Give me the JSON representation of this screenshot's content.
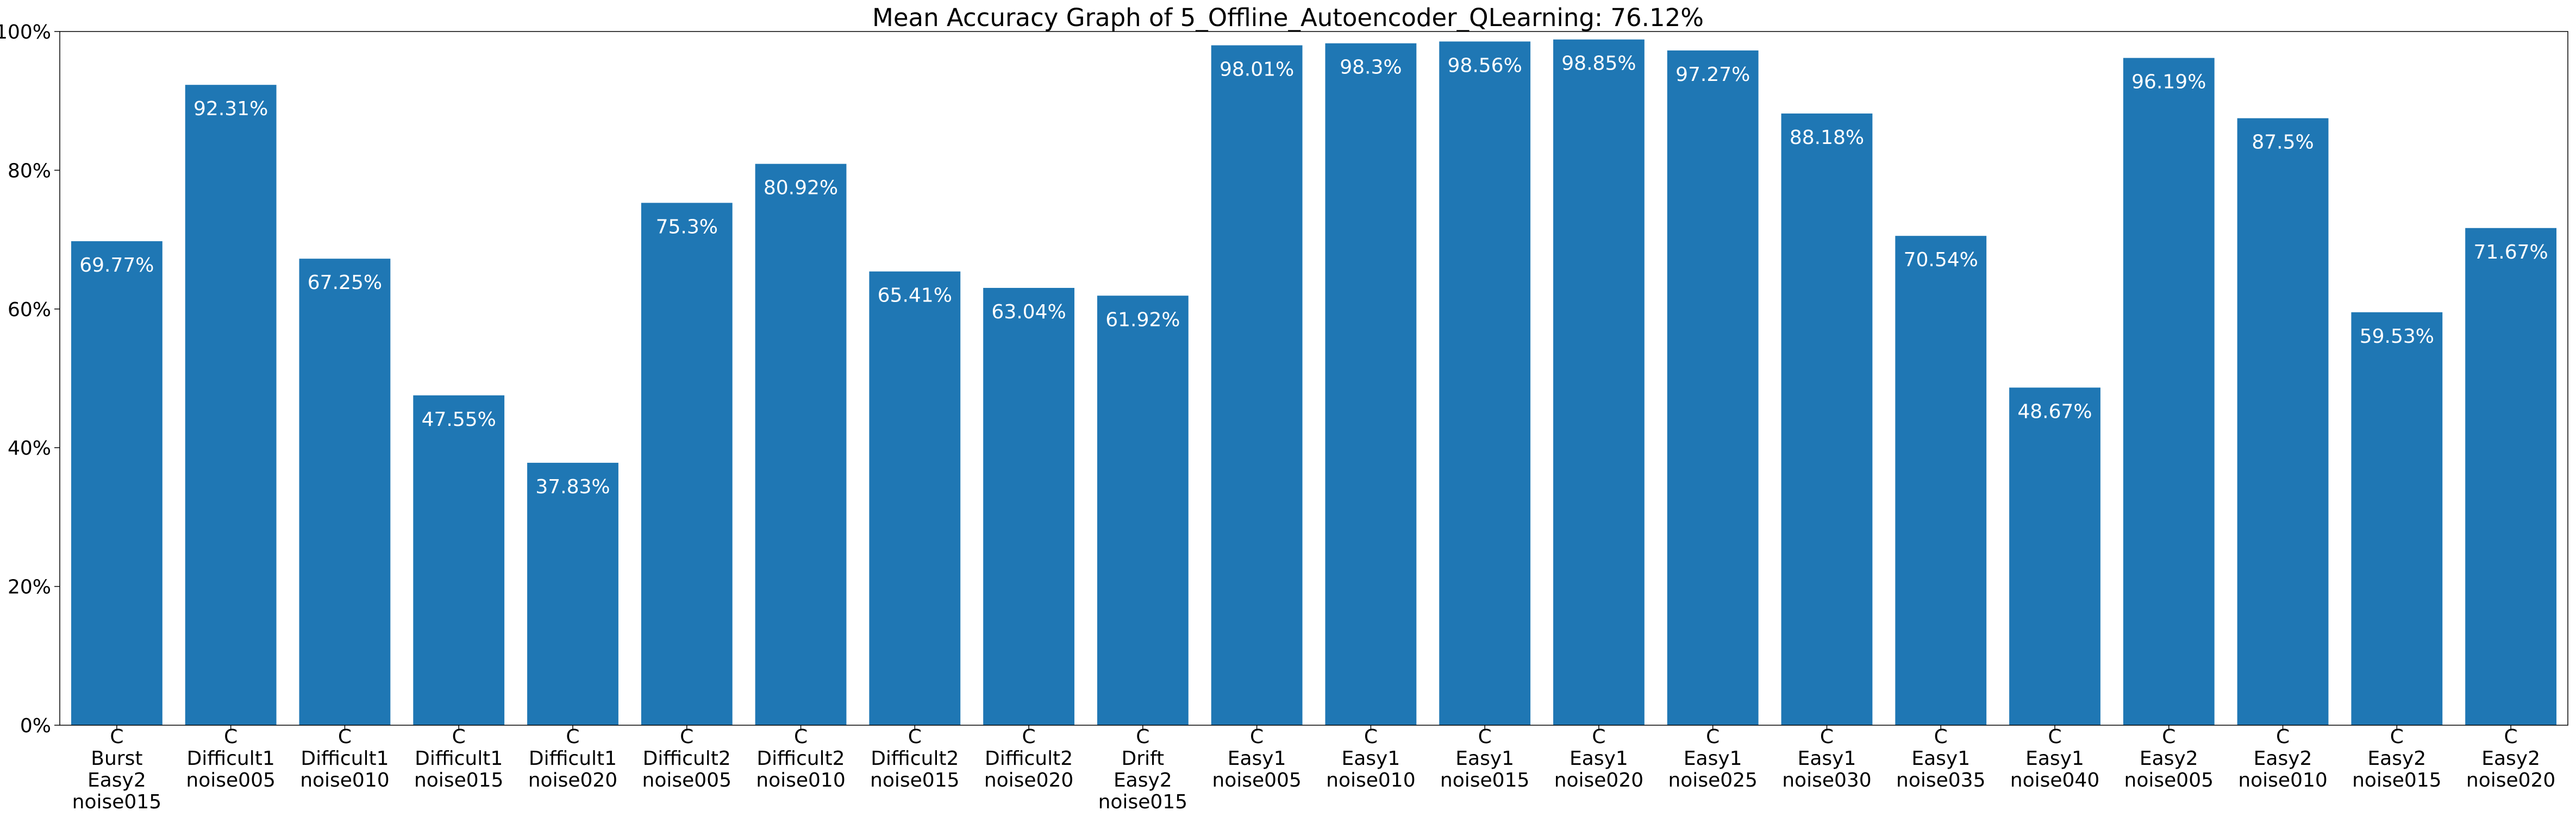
{
  "chart_data": {
    "type": "bar",
    "title": "Mean Accuracy Graph of 5_Offline_Autoencoder_QLearning: 76.12%",
    "xlabel": "",
    "ylabel": "",
    "ylim": [
      0,
      100
    ],
    "yticks": [
      0,
      20,
      40,
      60,
      80,
      100
    ],
    "ytick_labels": [
      "0%",
      "20%",
      "40%",
      "60%",
      "80%",
      "100%"
    ],
    "grid": false,
    "legend": "none",
    "bar_color": "#1f77b4",
    "categories": [
      [
        "C",
        "Burst",
        "Easy2",
        "noise015"
      ],
      [
        "C",
        "Difficult1",
        "noise005"
      ],
      [
        "C",
        "Difficult1",
        "noise010"
      ],
      [
        "C",
        "Difficult1",
        "noise015"
      ],
      [
        "C",
        "Difficult1",
        "noise020"
      ],
      [
        "C",
        "Difficult2",
        "noise005"
      ],
      [
        "C",
        "Difficult2",
        "noise010"
      ],
      [
        "C",
        "Difficult2",
        "noise015"
      ],
      [
        "C",
        "Difficult2",
        "noise020"
      ],
      [
        "C",
        "Drift",
        "Easy2",
        "noise015"
      ],
      [
        "C",
        "Easy1",
        "noise005"
      ],
      [
        "C",
        "Easy1",
        "noise010"
      ],
      [
        "C",
        "Easy1",
        "noise015"
      ],
      [
        "C",
        "Easy1",
        "noise020"
      ],
      [
        "C",
        "Easy1",
        "noise025"
      ],
      [
        "C",
        "Easy1",
        "noise030"
      ],
      [
        "C",
        "Easy1",
        "noise035"
      ],
      [
        "C",
        "Easy1",
        "noise040"
      ],
      [
        "C",
        "Easy2",
        "noise005"
      ],
      [
        "C",
        "Easy2",
        "noise010"
      ],
      [
        "C",
        "Easy2",
        "noise015"
      ],
      [
        "C",
        "Easy2",
        "noise020"
      ]
    ],
    "values": [
      69.77,
      92.31,
      67.25,
      47.55,
      37.83,
      75.3,
      80.92,
      65.41,
      63.04,
      61.92,
      98.01,
      98.3,
      98.56,
      98.85,
      97.27,
      88.18,
      70.54,
      48.67,
      96.19,
      87.5,
      59.53,
      71.67
    ],
    "data_labels": [
      "69.77%",
      "92.31%",
      "67.25%",
      "47.55%",
      "37.83%",
      "75.3%",
      "80.92%",
      "65.41%",
      "63.04%",
      "61.92%",
      "98.01%",
      "98.3%",
      "98.56%",
      "98.85%",
      "97.27%",
      "88.18%",
      "70.54%",
      "48.67%",
      "96.19%",
      "87.5%",
      "59.53%",
      "71.67%"
    ]
  }
}
